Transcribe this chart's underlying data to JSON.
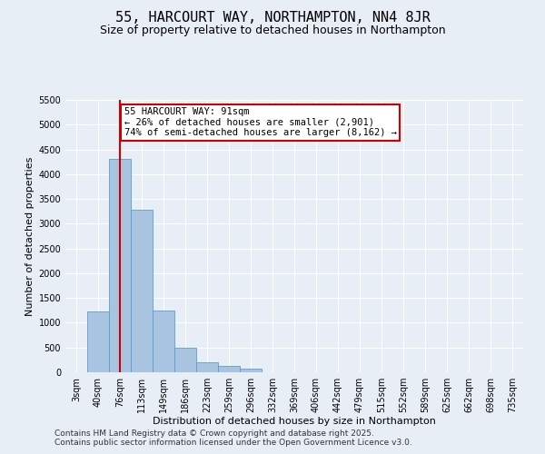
{
  "title": "55, HARCOURT WAY, NORTHAMPTON, NN4 8JR",
  "subtitle": "Size of property relative to detached houses in Northampton",
  "xlabel": "Distribution of detached houses by size in Northampton",
  "ylabel": "Number of detached properties",
  "footnote1": "Contains HM Land Registry data © Crown copyright and database right 2025.",
  "footnote2": "Contains public sector information licensed under the Open Government Licence v3.0.",
  "categories": [
    "3sqm",
    "40sqm",
    "76sqm",
    "113sqm",
    "149sqm",
    "186sqm",
    "223sqm",
    "259sqm",
    "296sqm",
    "332sqm",
    "369sqm",
    "406sqm",
    "442sqm",
    "479sqm",
    "515sqm",
    "552sqm",
    "589sqm",
    "625sqm",
    "662sqm",
    "698sqm",
    "735sqm"
  ],
  "values": [
    0,
    1220,
    4300,
    3280,
    1240,
    490,
    200,
    130,
    80,
    0,
    0,
    0,
    0,
    0,
    0,
    0,
    0,
    0,
    0,
    0,
    0
  ],
  "bar_color": "#a8c4e0",
  "bar_edge_color": "#5a9fd4",
  "vline_x_index": 2.0,
  "annotation_text_line1": "55 HARCOURT WAY: 91sqm",
  "annotation_text_line2": "← 26% of detached houses are smaller (2,901)",
  "annotation_text_line3": "74% of semi-detached houses are larger (8,162) →",
  "annotation_box_color": "#ffffff",
  "annotation_border_color": "#cc0000",
  "vline_color": "#cc0000",
  "background_color": "#e8eef5",
  "ylim": [
    0,
    5500
  ],
  "yticks": [
    0,
    500,
    1000,
    1500,
    2000,
    2500,
    3000,
    3500,
    4000,
    4500,
    5000,
    5500
  ],
  "grid_color": "#ffffff",
  "title_fontsize": 11,
  "subtitle_fontsize": 9,
  "axis_label_fontsize": 8,
  "tick_fontsize": 7,
  "annotation_fontsize": 7.5,
  "footnote_fontsize": 6.5
}
